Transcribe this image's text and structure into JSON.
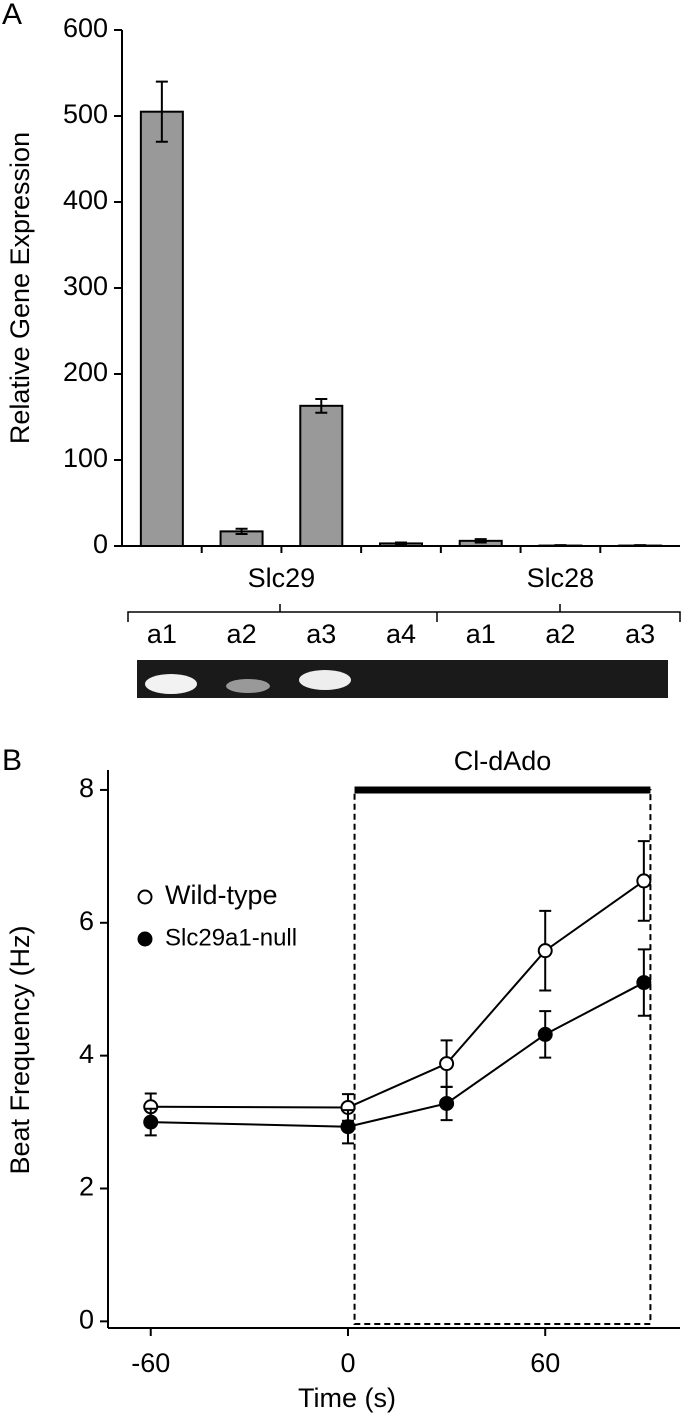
{
  "chart_data": [
    {
      "type": "bar",
      "panel_label": "A",
      "y_label": "Relative Gene Expression",
      "categories": [
        "a1",
        "a2",
        "a3",
        "a4",
        "a1",
        "a2",
        "a3"
      ],
      "groups": [
        "Slc29",
        "Slc28"
      ],
      "values": [
        505,
        17,
        163,
        3,
        6,
        0.5,
        0.5
      ],
      "errors": [
        35,
        3,
        8,
        1,
        2,
        0.5,
        0.5
      ],
      "color": "#999999",
      "ylim": [
        0,
        600
      ],
      "yticks": [
        0,
        100,
        200,
        300,
        400,
        500,
        600
      ]
    },
    {
      "type": "line",
      "panel_label": "B",
      "x_label": "Time (s)",
      "y_label": "Beat Frequency (Hz)",
      "annotation": "Cl-dAdo",
      "span": [
        2,
        92
      ],
      "x": [
        -60,
        0,
        30,
        60,
        90
      ],
      "series": [
        {
          "name": "Wild-type",
          "color": "#000000",
          "fill": "#ffffff",
          "values": [
            3.23,
            3.22,
            3.88,
            5.58,
            6.63
          ],
          "errors": [
            0.2,
            0.2,
            0.35,
            0.6,
            0.6
          ]
        },
        {
          "name": "Slc29a1-null",
          "color": "#000000",
          "fill": "#000000",
          "values": [
            3.0,
            2.93,
            3.28,
            4.32,
            5.1
          ],
          "errors": [
            0.2,
            0.25,
            0.25,
            0.35,
            0.5
          ]
        }
      ],
      "xlim": [
        -73,
        101
      ],
      "xticks": [
        -60,
        0,
        60
      ],
      "ylim": [
        -0.1,
        8.3
      ],
      "yticks": [
        0,
        2,
        4,
        6,
        8
      ]
    }
  ]
}
